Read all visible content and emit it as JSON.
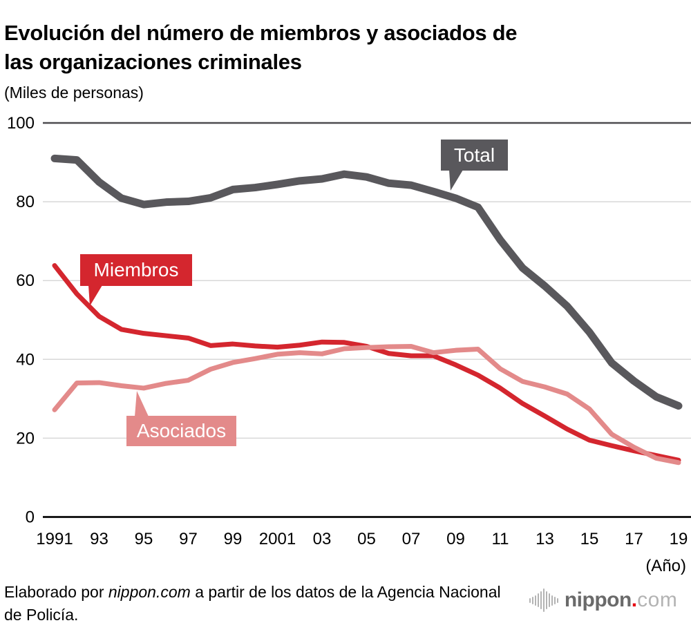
{
  "header": {
    "title_line1": "Evolución del número de miembros y asociados de",
    "title_line2": "las organizaciones criminales",
    "unit_label": "(Miles de personas)"
  },
  "chart_data": {
    "type": "line",
    "title": "Evolución del número de miembros y asociados de las organizaciones criminales",
    "ylabel": "Miles de personas",
    "xlabel": "(Año)",
    "ylim": [
      0,
      100
    ],
    "y_ticks": [
      0,
      20,
      40,
      60,
      80,
      100
    ],
    "grid": "horizontal",
    "legend_position": "badges-on-lines",
    "x": [
      1991,
      1992,
      1993,
      1994,
      1995,
      1996,
      1997,
      1998,
      1999,
      2000,
      2001,
      2002,
      2003,
      2004,
      2005,
      2006,
      2007,
      2008,
      2009,
      2010,
      2011,
      2012,
      2013,
      2014,
      2015,
      2016,
      2017,
      2018,
      2019
    ],
    "x_ticks": [
      {
        "label": "1991",
        "year": 1991
      },
      {
        "label": "93",
        "year": 1993
      },
      {
        "label": "95",
        "year": 1995
      },
      {
        "label": "97",
        "year": 1997
      },
      {
        "label": "99",
        "year": 1999
      },
      {
        "label": "2001",
        "year": 2001
      },
      {
        "label": "03",
        "year": 2003
      },
      {
        "label": "05",
        "year": 2005
      },
      {
        "label": "07",
        "year": 2007
      },
      {
        "label": "09",
        "year": 2009
      },
      {
        "label": "11",
        "year": 2011
      },
      {
        "label": "13",
        "year": 2013
      },
      {
        "label": "15",
        "year": 2015
      },
      {
        "label": "17",
        "year": 2017
      },
      {
        "label": "19",
        "year": 2019
      }
    ],
    "series": [
      {
        "name": "Total",
        "color": "#59585c",
        "values": [
          91.0,
          90.6,
          85.0,
          80.9,
          79.3,
          79.9,
          80.1,
          81.0,
          83.1,
          83.6,
          84.4,
          85.3,
          85.8,
          87.0,
          86.3,
          84.7,
          84.2,
          82.6,
          80.9,
          78.6,
          70.3,
          63.2,
          58.6,
          53.5,
          46.9,
          39.1,
          34.5,
          30.5,
          28.2
        ]
      },
      {
        "name": "Miembros",
        "color": "#d4262e",
        "values": [
          63.8,
          56.6,
          50.9,
          47.6,
          46.6,
          46.0,
          45.4,
          43.5,
          43.9,
          43.4,
          43.1,
          43.6,
          44.4,
          44.3,
          43.3,
          41.5,
          40.9,
          40.9,
          38.6,
          36.0,
          32.7,
          28.8,
          25.6,
          22.3,
          19.5,
          18.1,
          16.8,
          15.6,
          14.4
        ]
      },
      {
        "name": "Asociados",
        "color": "#e38a8a",
        "values": [
          27.2,
          34.0,
          34.1,
          33.3,
          32.7,
          33.9,
          34.7,
          37.5,
          39.2,
          40.2,
          41.3,
          41.7,
          41.4,
          42.7,
          43.0,
          43.2,
          43.3,
          41.7,
          42.3,
          42.6,
          37.6,
          34.4,
          33.0,
          31.2,
          27.4,
          21.0,
          17.7,
          14.9,
          13.8
        ]
      }
    ],
    "x_axis_label": "(Año)"
  },
  "footer": {
    "prefix": "Elaborado por ",
    "brand": "nippon.com",
    "suffix": " a partir de los datos de la Agencia Nacional de Policía."
  },
  "logo": {
    "name": "nippon",
    "dot": ".",
    "tld": "com"
  },
  "colors": {
    "total_line": "#59585c",
    "miembros_line": "#d4262e",
    "asociados_line": "#e38a8a",
    "grid": "#d8d8d8",
    "grid_top": "#4c4b4f",
    "axis": "#1a1a1a",
    "badge_text": "#ffffff",
    "text": "#000000",
    "logo_gray": "#6a6a6a",
    "logo_light": "#b3b3b3",
    "logo_dot": "#e60012"
  }
}
